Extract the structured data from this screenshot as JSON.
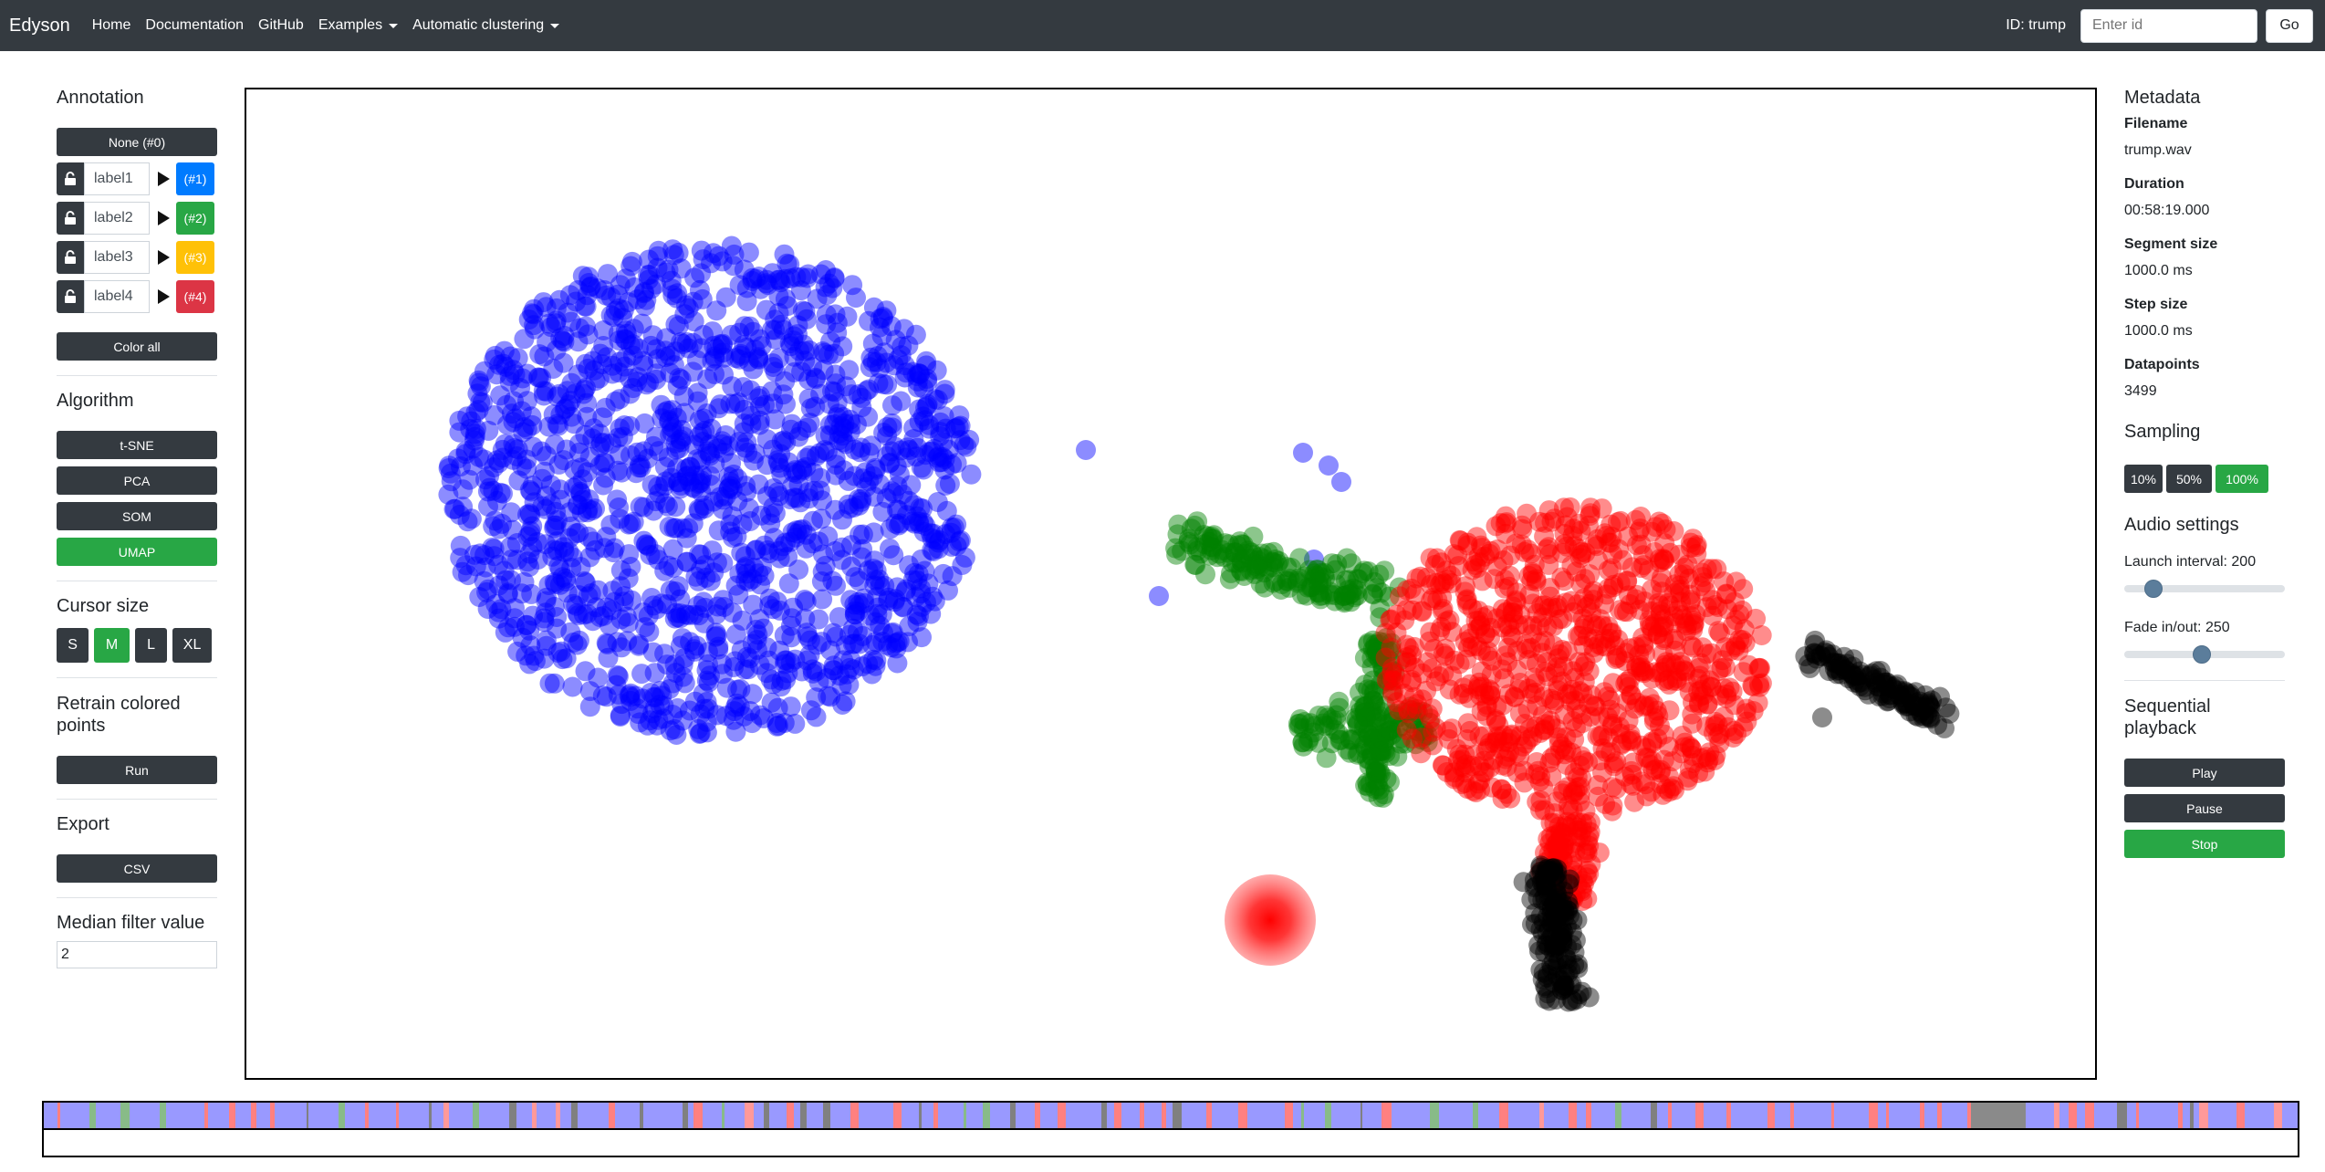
{
  "navbar": {
    "brand": "Edyson",
    "links": [
      "Home",
      "Documentation",
      "GitHub"
    ],
    "dropdowns": [
      "Examples",
      "Automatic clustering"
    ],
    "id_label": "ID: trump",
    "id_placeholder": "Enter id",
    "go_label": "Go"
  },
  "annotation": {
    "title": "Annotation",
    "none_button": "None (#0)",
    "labels": [
      {
        "name": "label1",
        "badge": "(#1)",
        "color": "#007bff"
      },
      {
        "name": "label2",
        "badge": "(#2)",
        "color": "#28a745"
      },
      {
        "name": "label3",
        "badge": "(#3)",
        "color": "#ffc107"
      },
      {
        "name": "label4",
        "badge": "(#4)",
        "color": "#dc3545"
      }
    ],
    "color_all": "Color all"
  },
  "algorithm": {
    "title": "Algorithm",
    "options": [
      "t-SNE",
      "PCA",
      "SOM",
      "UMAP"
    ],
    "selected": "UMAP"
  },
  "cursor": {
    "title": "Cursor size",
    "sizes": [
      "S",
      "M",
      "L",
      "XL"
    ],
    "selected": "M"
  },
  "retrain": {
    "title": "Retrain colored points",
    "run": "Run"
  },
  "export": {
    "title": "Export",
    "csv": "CSV"
  },
  "median": {
    "title": "Median filter value",
    "value": "2"
  },
  "metadata": {
    "title": "Metadata",
    "fields": [
      {
        "key": "Filename",
        "value": "trump.wav"
      },
      {
        "key": "Duration",
        "value": "00:58:19.000"
      },
      {
        "key": "Segment size",
        "value": "1000.0 ms"
      },
      {
        "key": "Step size",
        "value": "1000.0 ms"
      },
      {
        "key": "Datapoints",
        "value": "3499"
      }
    ]
  },
  "sampling": {
    "title": "Sampling",
    "options": [
      "10%",
      "50%",
      "100%"
    ],
    "selected": "100%"
  },
  "audio": {
    "title": "Audio settings",
    "launch_label": "Launch interval: 200",
    "launch_fraction": 0.14,
    "fade_label": "Fade in/out: 250",
    "fade_fraction": 0.48
  },
  "sequential": {
    "title": "Sequential playback",
    "play": "Play",
    "pause": "Pause",
    "stop": "Stop"
  },
  "colors": {
    "cluster_blue": "#0000ff",
    "cluster_green": "#008000",
    "cluster_red": "#ff0000",
    "cluster_black": "#000000",
    "dark": "#343a40",
    "success": "#28a745"
  }
}
